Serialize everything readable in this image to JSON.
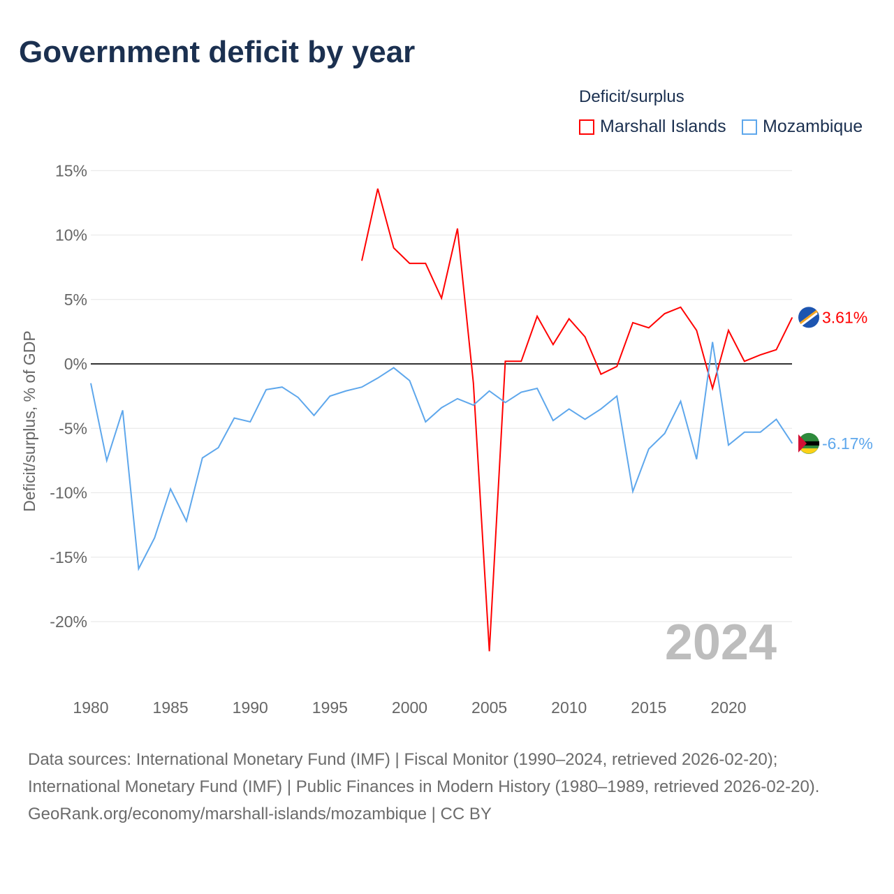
{
  "title": "Government deficit by year",
  "chart_data": {
    "type": "line",
    "title": "Government deficit by year",
    "ylabel": "Deficit/surplus, % of GDP",
    "xlabel": "",
    "legend_title": "Deficit/surplus",
    "legend_position": "top-right",
    "xlim": [
      1980,
      2024
    ],
    "ylim": [
      -25,
      16
    ],
    "x_ticks": [
      1980,
      1985,
      1990,
      1995,
      2000,
      2005,
      2010,
      2015,
      2020
    ],
    "y_ticks": [
      15,
      10,
      5,
      0,
      -5,
      -10,
      -15,
      -20
    ],
    "y_tick_labels": [
      "15%",
      "10%",
      "5%",
      "0%",
      "-5%",
      "-10%",
      "-15%",
      "-20%"
    ],
    "year_watermark": "2024",
    "series": [
      {
        "name": "Marshall Islands",
        "color": "#ff0000",
        "end_label": "3.61%",
        "x": [
          1997,
          1998,
          1999,
          2000,
          2001,
          2002,
          2003,
          2004,
          2005,
          2006,
          2007,
          2008,
          2009,
          2010,
          2011,
          2012,
          2013,
          2014,
          2015,
          2016,
          2017,
          2018,
          2019,
          2020,
          2021,
          2022,
          2023,
          2024
        ],
        "values": [
          8.0,
          13.6,
          9.0,
          7.8,
          7.8,
          5.1,
          10.5,
          -1.5,
          -22.3,
          0.2,
          0.2,
          3.7,
          1.5,
          3.5,
          2.1,
          -0.8,
          -0.2,
          3.2,
          2.8,
          3.9,
          4.4,
          2.6,
          -1.9,
          2.6,
          0.2,
          0.7,
          1.1,
          3.61
        ]
      },
      {
        "name": "Mozambique",
        "color": "#5ea7ec",
        "end_label": "-6.17%",
        "x": [
          1980,
          1981,
          1982,
          1983,
          1984,
          1985,
          1986,
          1987,
          1988,
          1989,
          1990,
          1991,
          1992,
          1993,
          1994,
          1995,
          1996,
          1997,
          1998,
          1999,
          2000,
          2001,
          2002,
          2003,
          2004,
          2005,
          2006,
          2007,
          2008,
          2009,
          2010,
          2011,
          2012,
          2013,
          2014,
          2015,
          2016,
          2017,
          2018,
          2019,
          2020,
          2021,
          2022,
          2023,
          2024
        ],
        "values": [
          -1.5,
          -7.5,
          -3.6,
          -15.9,
          -13.5,
          -9.7,
          -12.2,
          -7.3,
          -6.5,
          -4.2,
          -4.5,
          -2.0,
          -1.8,
          -2.6,
          -4.0,
          -2.5,
          -2.1,
          -1.8,
          -1.1,
          -0.3,
          -1.3,
          -4.5,
          -3.4,
          -2.7,
          -3.2,
          -2.1,
          -3.0,
          -2.2,
          -1.9,
          -4.4,
          -3.5,
          -4.3,
          -3.5,
          -2.5,
          -9.9,
          -6.6,
          -5.4,
          -2.9,
          -7.4,
          1.7,
          -6.3,
          -5.3,
          -5.3,
          -4.3,
          -6.17
        ]
      }
    ]
  },
  "footer": {
    "sources": "Data sources: International Monetary Fund (IMF) | Fiscal Monitor (1990–2024, retrieved 2026-02-20); International Monetary Fund (IMF) | Public Finances in Modern History (1980–1989, retrieved 2026-02-20).",
    "credit": "GeoRank.org/economy/marshall-islands/mozambique | CC BY"
  }
}
